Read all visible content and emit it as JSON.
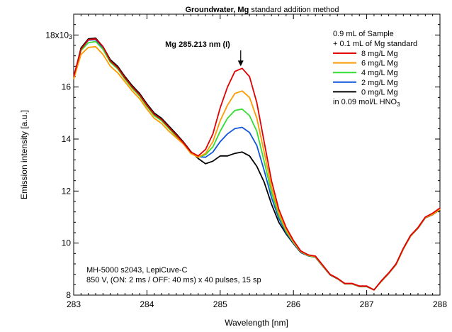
{
  "chart_data": {
    "type": "line",
    "title_bold": "Groundwater, Mg",
    "title_rest": " standard addition method",
    "xlabel": "Wavelength [nm]",
    "ylabel": "Emission intensity [a.u.]",
    "xlim": [
      283,
      288
    ],
    "ylim": [
      8000,
      18800
    ],
    "x_ticks": [
      283,
      284,
      285,
      286,
      287,
      288
    ],
    "x_tick_labels": [
      "283",
      "284",
      "285",
      "286",
      "287",
      "288"
    ],
    "y_ticks": [
      8000,
      10000,
      12000,
      14000,
      16000,
      18000
    ],
    "y_tick_labels": [
      "8",
      "10",
      "12",
      "14",
      "16",
      "18x10"
    ],
    "y_top_exponent": "3",
    "grid": false,
    "legend_position": "top-right",
    "legend_header": [
      "0.9 mL of Sample",
      "+ 0.1 mL of Mg standard"
    ],
    "legend_footer_main": "in 0.09 mol/L HNO",
    "legend_footer_sub": "3",
    "peak_annotation": {
      "label": "Mg 285.213 nm (I)",
      "x": 285.28,
      "y_arrow_end": 16800
    },
    "info_lines": [
      "MH-5000 s2043, LepiCuve-C",
      "850 V, (ON: 2 ms / OFF: 40 ms) x 40 pulses, 15 sp"
    ],
    "x": [
      283.0,
      283.1,
      283.2,
      283.3,
      283.4,
      283.5,
      283.6,
      283.7,
      283.8,
      283.9,
      284.0,
      284.1,
      284.2,
      284.3,
      284.4,
      284.5,
      284.6,
      284.7,
      284.8,
      284.9,
      285.0,
      285.1,
      285.2,
      285.3,
      285.4,
      285.5,
      285.6,
      285.7,
      285.8,
      285.9,
      286.0,
      286.1,
      286.2,
      286.3,
      286.4,
      286.5,
      286.6,
      286.7,
      286.8,
      286.9,
      287.0,
      287.1,
      287.2,
      287.3,
      287.4,
      287.5,
      287.6,
      287.7,
      287.8,
      287.9,
      288.0
    ],
    "series": [
      {
        "name": "8 mg/L Mg",
        "color": "#e00000",
        "values": [
          16400,
          17450,
          17820,
          17850,
          17550,
          17000,
          16750,
          16350,
          16000,
          15700,
          15300,
          14950,
          14750,
          14450,
          14150,
          13850,
          13500,
          13350,
          13600,
          14200,
          15200,
          16000,
          16600,
          16720,
          16400,
          15400,
          13900,
          12400,
          11300,
          10600,
          10100,
          9700,
          9550,
          9500,
          9150,
          8800,
          8650,
          8450,
          8450,
          8350,
          8350,
          8200,
          8550,
          8850,
          9200,
          9800,
          10300,
          10600,
          11000,
          11150,
          11350
        ]
      },
      {
        "name": "6 mg/L Mg",
        "color": "#ff9900",
        "values": [
          16300,
          17250,
          17520,
          17550,
          17250,
          16800,
          16550,
          16200,
          15850,
          15550,
          15150,
          14800,
          14600,
          14300,
          14050,
          13800,
          13450,
          13300,
          13450,
          13900,
          14700,
          15300,
          15750,
          15850,
          15600,
          14800,
          13500,
          12150,
          11150,
          10500,
          10050,
          9680,
          9530,
          9480,
          9130,
          8790,
          8640,
          8440,
          8440,
          8340,
          8340,
          8200,
          8540,
          8840,
          9180,
          9780,
          10280,
          10580,
          10980,
          11100,
          11300
        ]
      },
      {
        "name": "4 mg/L Mg",
        "color": "#33dd33",
        "values": [
          16350,
          17400,
          17700,
          17750,
          17450,
          16950,
          16700,
          16300,
          15950,
          15650,
          15250,
          14900,
          14700,
          14400,
          14100,
          13820,
          13450,
          13300,
          13400,
          13700,
          14300,
          14800,
          15100,
          15150,
          14900,
          14300,
          13150,
          11950,
          11050,
          10450,
          10020,
          9670,
          9520,
          9470,
          9120,
          8790,
          8640,
          8440,
          8440,
          8340,
          8340,
          8200,
          8540,
          8840,
          9180,
          9780,
          10280,
          10580,
          10980,
          11100,
          11300
        ]
      },
      {
        "name": "2 mg/L Mg",
        "color": "#1155dd",
        "values": [
          16350,
          17450,
          17800,
          17820,
          17500,
          17000,
          16750,
          16350,
          16000,
          15700,
          15300,
          14950,
          14750,
          14450,
          14150,
          13850,
          13500,
          13320,
          13300,
          13500,
          13900,
          14200,
          14400,
          14450,
          14250,
          13750,
          12800,
          11750,
          10950,
          10400,
          10000,
          9650,
          9520,
          9470,
          9120,
          8790,
          8640,
          8440,
          8440,
          8340,
          8340,
          8200,
          8540,
          8840,
          9180,
          9780,
          10280,
          10580,
          10980,
          11100,
          11300
        ]
      },
      {
        "name": "0 mg/L Mg",
        "color": "#000000",
        "values": [
          16350,
          17500,
          17850,
          17880,
          17550,
          17050,
          16800,
          16400,
          16050,
          15750,
          15350,
          15000,
          14800,
          14500,
          14200,
          13880,
          13520,
          13250,
          13050,
          13150,
          13350,
          13350,
          13450,
          13500,
          13350,
          12950,
          12350,
          11500,
          10800,
          10350,
          9980,
          9640,
          9510,
          9460,
          9110,
          8780,
          8630,
          8430,
          8430,
          8330,
          8330,
          8200,
          8530,
          8830,
          9170,
          9770,
          10270,
          10570,
          10970,
          11090,
          11290
        ]
      }
    ]
  }
}
